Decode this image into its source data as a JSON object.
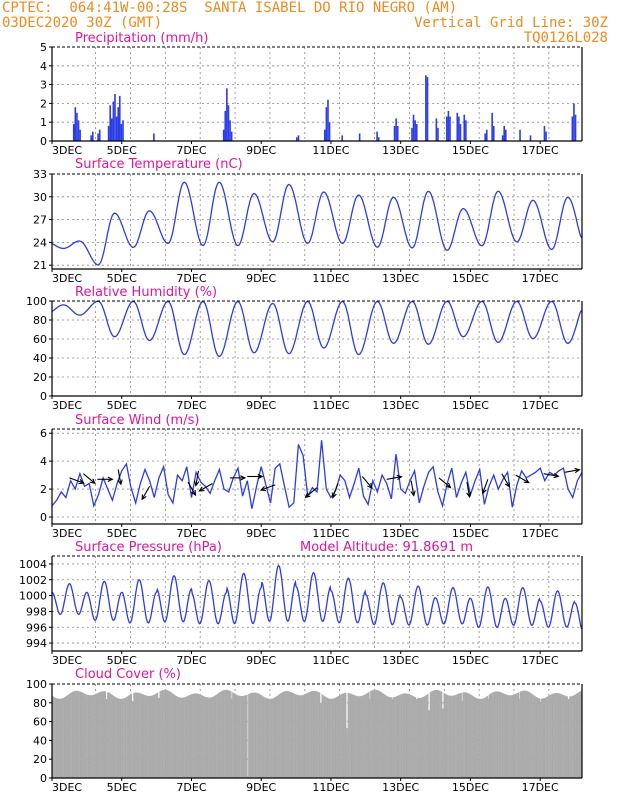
{
  "header": {
    "line1": "CPTEC:  064:41W-00:28S  SANTA ISABEL DO RIO NEGRO (AM)",
    "line2_left": "03DEC2020 30Z (GMT)",
    "line2_right": "Vertical Grid Line: 30Z",
    "line3_right": "TQ0126L028"
  },
  "colors": {
    "series": "#2b3ce8",
    "title": "#e0169a",
    "header": "#f08a1c",
    "cloud": "#aaaaaa",
    "wind_arrow": "#000000"
  },
  "x_tick_labels": [
    "3DEC",
    "5DEC",
    "7DEC",
    "9DEC",
    "11DEC",
    "13DEC",
    "15DEC",
    "17DEC"
  ],
  "chart_data": [
    {
      "type": "bar",
      "title": "Precipitation (mm/h)",
      "ylim": [
        0,
        5
      ],
      "yticks": [
        0,
        1,
        2,
        3,
        4,
        5
      ],
      "x_day_range": [
        3,
        18.2
      ],
      "grid": true,
      "events": [
        {
          "day": 3.6,
          "values": [
            0.9,
            1.8,
            1.5,
            1.1,
            0.6
          ]
        },
        {
          "day": 4.1,
          "values": [
            0.3,
            0.5
          ]
        },
        {
          "day": 4.3,
          "values": [
            0.4,
            0.6
          ]
        },
        {
          "day": 4.6,
          "values": [
            0.8,
            1.9,
            1.2,
            2.1,
            2.5,
            1.3,
            1.8,
            2.4,
            0.9,
            1.1
          ]
        },
        {
          "day": 5.9,
          "values": [
            0.4
          ]
        },
        {
          "day": 7.9,
          "values": [
            0.6,
            1.6,
            2.8,
            1.9,
            1.1,
            0.5
          ]
        },
        {
          "day": 10.0,
          "values": [
            0.2,
            0.3
          ]
        },
        {
          "day": 10.8,
          "values": [
            0.6,
            1.8,
            2.2,
            1.0
          ]
        },
        {
          "day": 11.3,
          "values": [
            0.3
          ]
        },
        {
          "day": 11.8,
          "values": [
            0.4
          ]
        },
        {
          "day": 12.3,
          "values": [
            0.5,
            0.2
          ]
        },
        {
          "day": 12.8,
          "values": [
            0.8,
            1.2,
            0.8
          ]
        },
        {
          "day": 13.3,
          "values": [
            0.7,
            1.4,
            1.1,
            0.9
          ]
        },
        {
          "day": 13.7,
          "values": [
            3.5,
            3.4
          ]
        },
        {
          "day": 14.0,
          "values": [
            1.2,
            0.7
          ]
        },
        {
          "day": 14.3,
          "values": [
            1.3,
            1.6,
            1.3
          ]
        },
        {
          "day": 14.6,
          "values": [
            1.5,
            1.3,
            0.9
          ]
        },
        {
          "day": 14.8,
          "values": [
            1.4,
            1.1
          ]
        },
        {
          "day": 15.4,
          "values": [
            0.4,
            0.6
          ]
        },
        {
          "day": 15.6,
          "values": [
            1.5,
            0.8
          ]
        },
        {
          "day": 15.9,
          "values": [
            0.3,
            0.8,
            0.6
          ]
        },
        {
          "day": 16.4,
          "values": [
            0.6
          ]
        },
        {
          "day": 16.7,
          "values": [
            0.3
          ]
        },
        {
          "day": 17.1,
          "values": [
            0.8,
            0.5
          ]
        },
        {
          "day": 17.9,
          "values": [
            1.3,
            2.0,
            1.4
          ]
        }
      ]
    },
    {
      "type": "line",
      "title": "Surface Temperature (nC)",
      "ylim": [
        20.5,
        33
      ],
      "yticks": [
        21,
        24,
        27,
        30,
        33
      ],
      "x_day_range": [
        3,
        18.2
      ],
      "grid": true,
      "daily_cycle": {
        "min_hour": 8,
        "max_hour": 19
      },
      "daily_min": [
        23.2,
        21.0,
        23.3,
        23.8,
        23.5,
        23.5,
        24.0,
        23.8,
        23.8,
        23.3,
        23.2,
        22.9,
        23.5,
        24.0,
        23.0,
        23.1
      ],
      "daily_max": [
        24.2,
        27.9,
        28.2,
        32.0,
        32.0,
        30.5,
        31.7,
        30.7,
        30.3,
        30.0,
        30.8,
        28.5,
        30.8,
        29.6,
        30.0,
        29.6
      ]
    },
    {
      "type": "line",
      "title": "Relative Humidity (%)",
      "ylim": [
        0,
        100
      ],
      "yticks": [
        0,
        20,
        40,
        60,
        80,
        100
      ],
      "x_day_range": [
        3,
        18.2
      ],
      "grid": true,
      "daily_cycle": {
        "min_hour": 19,
        "max_hour": 8
      },
      "daily_min": [
        85,
        62,
        58,
        43,
        41,
        45,
        44,
        50,
        43,
        55,
        54,
        62,
        56,
        60,
        55,
        57
      ],
      "daily_max": [
        96,
        100,
        100,
        100,
        100,
        100,
        98,
        100,
        100,
        100,
        100,
        100,
        100,
        100,
        100,
        100
      ]
    },
    {
      "type": "line",
      "title": "Surface Wind (m/s)",
      "ylim": [
        -0.5,
        6.3
      ],
      "yticks": [
        0,
        2,
        4,
        6
      ],
      "x_day_range": [
        3,
        18.2
      ],
      "grid": true,
      "speed": [
        0.8,
        1.2,
        1.8,
        1.4,
        2.6,
        2.0,
        3.1,
        2.2,
        2.4,
        0.8,
        1.6,
        2.8,
        2.0,
        1.2,
        2.4,
        3.3,
        3.8,
        2.1,
        1.0,
        2.4,
        3.4,
        2.6,
        1.4,
        2.8,
        3.6,
        1.6,
        1.0,
        3.0,
        2.6,
        3.6,
        1.4,
        3.2,
        2.5,
        2.2,
        1.7,
        2.6,
        3.4,
        2.0,
        1.8,
        2.8,
        3.5,
        1.5,
        2.6,
        0.6,
        2.2,
        3.6,
        2.3,
        1.0,
        3.5,
        3.8,
        2.2,
        0.7,
        1.0,
        5.2,
        4.4,
        1.5,
        2.1,
        1.8,
        5.5,
        2.0,
        1.4,
        1.9,
        3.0,
        2.6,
        1.4,
        2.4,
        3.5,
        1.5,
        0.9,
        2.6,
        1.8,
        3.0,
        2.4,
        1.3,
        4.5,
        2.0,
        1.7,
        2.6,
        3.3,
        1.0,
        2.2,
        3.2,
        3.6,
        1.8,
        0.8,
        2.4,
        3.5,
        1.4,
        2.4,
        3.2,
        1.6,
        2.6,
        3.4,
        0.9,
        2.2,
        3.0,
        2.0,
        2.7,
        3.2,
        0.7,
        2.3,
        3.3,
        2.8,
        3.0,
        3.2,
        3.5,
        2.6,
        3.2,
        3.0,
        3.3,
        3.5,
        2.0,
        1.4,
        2.6,
        3.2
      ],
      "arrows": [
        {
          "day": 3.5,
          "speed": 2.8,
          "dir": 110
        },
        {
          "day": 3.9,
          "speed": 3.1,
          "dir": 130
        },
        {
          "day": 4.3,
          "speed": 2.7,
          "dir": 90
        },
        {
          "day": 4.9,
          "speed": 3.4,
          "dir": 170
        },
        {
          "day": 5.8,
          "speed": 2.2,
          "dir": 210
        },
        {
          "day": 6.9,
          "speed": 2.5,
          "dir": 150
        },
        {
          "day": 7.2,
          "speed": 3.3,
          "dir": 190
        },
        {
          "day": 7.6,
          "speed": 2.4,
          "dir": 240
        },
        {
          "day": 8.1,
          "speed": 2.8,
          "dir": 90
        },
        {
          "day": 8.6,
          "speed": 2.9,
          "dir": 90
        },
        {
          "day": 9.4,
          "speed": 2.3,
          "dir": 250
        },
        {
          "day": 10.6,
          "speed": 2.1,
          "dir": 230
        },
        {
          "day": 11.2,
          "speed": 2.4,
          "dir": 200
        },
        {
          "day": 11.9,
          "speed": 2.9,
          "dir": 140
        },
        {
          "day": 12.6,
          "speed": 2.7,
          "dir": 80
        },
        {
          "day": 13.3,
          "speed": 2.6,
          "dir": 170
        },
        {
          "day": 14.1,
          "speed": 2.8,
          "dir": 130
        },
        {
          "day": 14.9,
          "speed": 2.5,
          "dir": 170
        },
        {
          "day": 15.5,
          "speed": 2.7,
          "dir": 200
        },
        {
          "day": 15.9,
          "speed": 3.1,
          "dir": 150
        },
        {
          "day": 16.3,
          "speed": 3.0,
          "dir": 120
        },
        {
          "day": 17.1,
          "speed": 3.1,
          "dir": 100
        },
        {
          "day": 17.7,
          "speed": 3.2,
          "dir": 80
        }
      ]
    },
    {
      "type": "line",
      "title": "Surface Pressure (hPa)",
      "annotation": "Model Altitude: 91.8691 m",
      "ylim": [
        993,
        1005
      ],
      "yticks": [
        994,
        996,
        998,
        1000,
        1002,
        1004
      ],
      "x_day_range": [
        3,
        18.2
      ],
      "grid": true,
      "daily_max_hour": 12,
      "daily_amplitude": [
        2.2,
        2.8,
        3.1,
        3.3,
        3.1,
        3.6,
        4.0,
        3.5,
        3.2,
        3.0,
        2.8,
        2.6,
        2.9,
        2.7,
        2.6,
        2.9
      ],
      "daily_mean": [
        999.3,
        999.0,
        998.9,
        999.2,
        998.8,
        999.2,
        999.8,
        999.4,
        999.0,
        998.6,
        998.4,
        998.4,
        998.2,
        998.3,
        998.0,
        997.6
      ]
    },
    {
      "type": "bar",
      "title": "Cloud Cover (%)",
      "ylim": [
        0,
        100
      ],
      "yticks": [
        0,
        20,
        40,
        60,
        80,
        100
      ],
      "x_day_range": [
        3,
        18.2
      ],
      "grid": true,
      "typical_value": 89,
      "dips": [
        {
          "day": 4.55,
          "value": 84
        },
        {
          "day": 5.3,
          "value": 82
        },
        {
          "day": 6.05,
          "value": 85
        },
        {
          "day": 7.45,
          "value": 86
        },
        {
          "day": 8.15,
          "value": 84
        },
        {
          "day": 8.6,
          "value": 2
        },
        {
          "day": 10.7,
          "value": 80
        },
        {
          "day": 11.45,
          "value": 53
        },
        {
          "day": 12.1,
          "value": 84
        },
        {
          "day": 12.75,
          "value": 84
        },
        {
          "day": 13.45,
          "value": 84
        },
        {
          "day": 13.8,
          "value": 72
        },
        {
          "day": 14.2,
          "value": 74
        },
        {
          "day": 14.75,
          "value": 82
        },
        {
          "day": 15.5,
          "value": 84
        },
        {
          "day": 16.4,
          "value": 84
        },
        {
          "day": 17.0,
          "value": 81
        },
        {
          "day": 17.8,
          "value": 84
        }
      ]
    }
  ]
}
